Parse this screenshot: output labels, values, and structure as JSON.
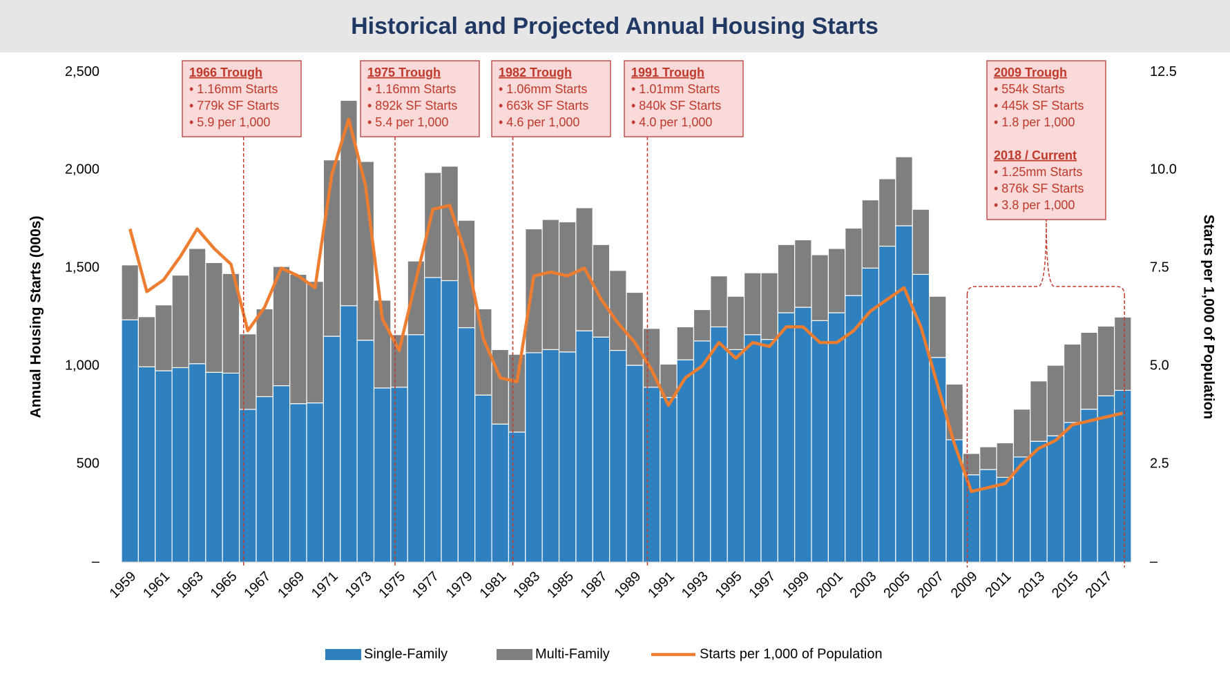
{
  "chart_data": {
    "type": "bar",
    "stacked": true,
    "title": "Historical and Projected Annual Housing Starts",
    "y_label": "Annual Housing Starts (000s)",
    "y2_label": "Starts per 1,000 of Population",
    "categories": [
      "1959",
      null,
      "1961",
      null,
      "1963",
      null,
      "1965",
      null,
      "1967",
      null,
      "1969",
      null,
      "1971",
      null,
      "1973",
      null,
      "1975",
      null,
      "1977",
      null,
      "1979",
      null,
      "1981",
      null,
      "1983",
      null,
      "1985",
      null,
      "1987",
      null,
      "1989",
      null,
      "1991",
      null,
      "1993",
      null,
      "1995",
      null,
      "1997",
      null,
      "1999",
      null,
      "2001",
      null,
      "2003",
      null,
      "2005",
      null,
      "2007",
      null,
      "2009",
      null,
      "2011",
      null,
      "2013",
      null,
      "2015",
      null,
      "2017",
      null
    ],
    "series": [
      {
        "name": "Single-Family",
        "color": "#2e80bf",
        "values": [
          1236,
          996,
          976,
          992,
          1012,
          968,
          964,
          779,
          844,
          900,
          808,
          812,
          1152,
          1308,
          1132,
          888,
          892,
          1160,
          1452,
          1436,
          1196,
          852,
          704,
          663,
          1068,
          1084,
          1072,
          1180,
          1148,
          1080,
          1004,
          892,
          840,
          1032,
          1128,
          1200,
          1084,
          1160,
          1136,
          1272,
          1300,
          1232,
          1272,
          1360,
          1500,
          1612,
          1716,
          1468,
          1044,
          624,
          445,
          472,
          432,
          536,
          616,
          644,
          712,
          780,
          848,
          876
        ]
      },
      {
        "name": "Multi-Family",
        "color": "#7f7f7f",
        "values": [
          280,
          256,
          336,
          472,
          588,
          560,
          508,
          385,
          448,
          608,
          660,
          620,
          900,
          1048,
          912,
          448,
          268,
          376,
          536,
          584,
          548,
          440,
          380,
          397,
          632,
          664,
          664,
          628,
          472,
          408,
          372,
          300,
          170,
          168,
          160,
          260,
          272,
          316,
          340,
          348,
          344,
          336,
          328,
          344,
          348,
          344,
          352,
          332,
          312,
          284,
          109,
          116,
          176,
          244,
          308,
          360,
          400,
          392,
          356,
          374
        ]
      },
      {
        "name": "Starts per 1,000 of Population",
        "color": "#ed7d31",
        "type": "line",
        "axis": "y2",
        "values": [
          8.5,
          6.9,
          7.2,
          7.8,
          8.5,
          8.0,
          7.6,
          5.9,
          6.5,
          7.5,
          7.3,
          7.0,
          9.9,
          11.3,
          9.6,
          6.2,
          5.4,
          7.2,
          9.0,
          9.1,
          7.8,
          5.7,
          4.7,
          4.6,
          7.3,
          7.4,
          7.3,
          7.5,
          6.7,
          6.1,
          5.6,
          4.9,
          4.0,
          4.7,
          5.0,
          5.6,
          5.2,
          5.6,
          5.5,
          6.0,
          6.0,
          5.6,
          5.6,
          5.9,
          6.4,
          6.7,
          7.0,
          6.0,
          4.5,
          3.0,
          1.8,
          1.9,
          2.0,
          2.5,
          2.9,
          3.1,
          3.5,
          3.6,
          3.7,
          3.8
        ]
      }
    ],
    "ylim": [
      0,
      2500
    ],
    "yticks": [
      {
        "value": 0,
        "label": "–"
      },
      500,
      {
        "value": 1000,
        "label": "1,000"
      },
      {
        "value": 1500,
        "label": "1,500"
      },
      {
        "value": 2000,
        "label": "2,000"
      },
      {
        "value": 2500,
        "label": "2,500"
      }
    ],
    "y2lim": [
      0,
      12.5
    ],
    "y2ticks": [
      {
        "value": 0,
        "label": "–"
      },
      2.5,
      {
        "value": 5,
        "label": "5.0"
      },
      7.5,
      {
        "value": 10,
        "label": "10.0"
      },
      12.5
    ],
    "legend": "bottom",
    "annotations": [
      {
        "title": "1966 Trough",
        "lines": [
          "• 1.16mm Starts",
          "• 779k SF Starts",
          "• 5.9 per 1,000"
        ]
      },
      {
        "title": "1975 Trough",
        "lines": [
          "• 1.16mm Starts",
          "• 892k SF Starts",
          "• 5.4 per 1,000"
        ]
      },
      {
        "title": "1982 Trough",
        "lines": [
          "• 1.06mm Starts",
          "• 663k SF Starts",
          "• 4.6 per 1,000"
        ]
      },
      {
        "title": "1991 Trough",
        "lines": [
          "• 1.01mm Starts",
          "• 840k SF Starts",
          "• 4.0 per 1,000"
        ]
      },
      {
        "title": "2009 Trough",
        "lines": [
          "• 554k Starts",
          "• 445k SF Starts",
          "• 1.8 per 1,000"
        ]
      },
      {
        "title": "2018 / Current",
        "lines": [
          "• 1.25mm Starts",
          "• 876k SF Starts",
          "• 3.8 per 1,000"
        ]
      }
    ]
  }
}
